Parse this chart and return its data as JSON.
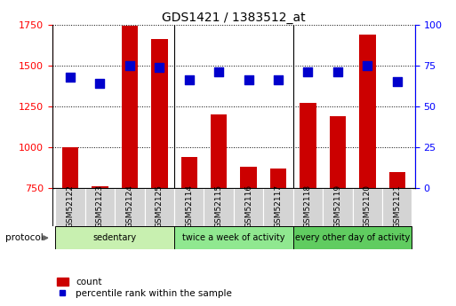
{
  "title": "GDS1421 / 1383512_at",
  "categories": [
    "GSM52122",
    "GSM52123",
    "GSM52124",
    "GSM52125",
    "GSM52114",
    "GSM52115",
    "GSM52116",
    "GSM52117",
    "GSM52118",
    "GSM52119",
    "GSM52120",
    "GSM52121"
  ],
  "counts": [
    1000,
    760,
    1740,
    1660,
    940,
    1200,
    880,
    870,
    1270,
    1190,
    1690,
    850
  ],
  "percentile_ranks": [
    68,
    64,
    75,
    74,
    66,
    71,
    66,
    66,
    71,
    71,
    75,
    65
  ],
  "bar_color": "#cc0000",
  "dot_color": "#0000cc",
  "ylim_left": [
    750,
    1750
  ],
  "ylim_right": [
    0,
    100
  ],
  "yticks_left": [
    750,
    1000,
    1250,
    1500,
    1750
  ],
  "yticks_right": [
    0,
    25,
    50,
    75,
    100
  ],
  "groups": [
    {
      "label": "sedentary",
      "start": 0,
      "end": 4,
      "color": "#c8f0b0"
    },
    {
      "label": "twice a week of activity",
      "start": 4,
      "end": 8,
      "color": "#90e890"
    },
    {
      "label": "every other day of activity",
      "start": 8,
      "end": 12,
      "color": "#60cc60"
    }
  ],
  "sample_bg_color": "#d4d4d4",
  "legend_count_label": "count",
  "legend_pct_label": "percentile rank within the sample",
  "protocol_label": "protocol",
  "background_color": "#ffffff",
  "bar_width": 0.55,
  "dot_size": 45
}
